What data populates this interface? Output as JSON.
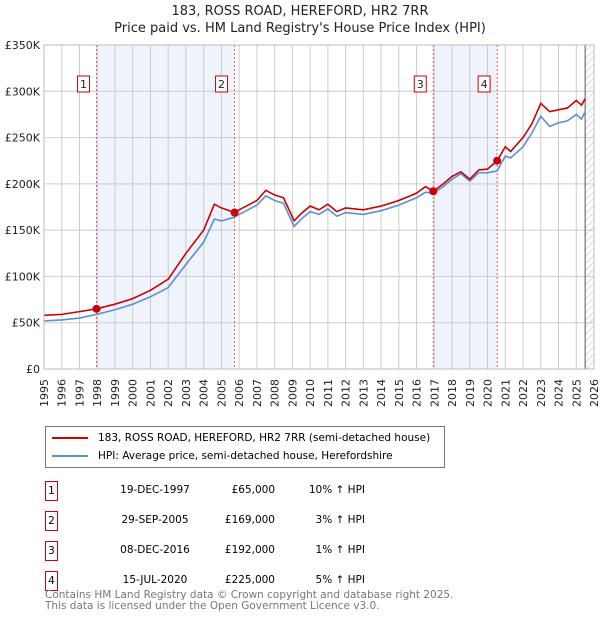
{
  "chart_data": {
    "type": "line",
    "title": "183, ROSS ROAD, HEREFORD, HR2 7RR",
    "subtitle": "Price paid vs. HM Land Registry's House Price Index (HPI)",
    "xlim": [
      1995,
      2026
    ],
    "ylim": [
      0,
      350000
    ],
    "x_ticks": [
      "1995",
      "1996",
      "1997",
      "1998",
      "1999",
      "2000",
      "2001",
      "2002",
      "2003",
      "2004",
      "2005",
      "2006",
      "2007",
      "2008",
      "2009",
      "2010",
      "2011",
      "2012",
      "2013",
      "2014",
      "2015",
      "2016",
      "2017",
      "2018",
      "2019",
      "2020",
      "2021",
      "2022",
      "2023",
      "2024",
      "2025",
      "2026"
    ],
    "y_ticks": [
      {
        "v": 0,
        "label": "£0"
      },
      {
        "v": 50000,
        "label": "£50K"
      },
      {
        "v": 100000,
        "label": "£100K"
      },
      {
        "v": 150000,
        "label": "£150K"
      },
      {
        "v": 200000,
        "label": "£200K"
      },
      {
        "v": 250000,
        "label": "£250K"
      },
      {
        "v": 300000,
        "label": "£300K"
      },
      {
        "v": 350000,
        "label": "£350K"
      }
    ],
    "grid": true,
    "shaded_periods": [
      [
        1997.96,
        2005.74
      ],
      [
        2016.94,
        2020.54
      ]
    ],
    "forecast_hatch_from": 2025.5,
    "series": [
      {
        "name": "183, ROSS ROAD, HEREFORD, HR2 7RR (semi-detached house)",
        "color": "#cc0000",
        "x": [
          1995,
          1996,
          1997,
          1997.96,
          1999,
          2000,
          2001,
          2002,
          2003,
          2004,
          2004.6,
          2005,
          2005.74,
          2006,
          2007,
          2007.5,
          2008,
          2008.5,
          2009.1,
          2009.5,
          2010,
          2010.5,
          2011,
          2011.5,
          2012,
          2013,
          2014,
          2015,
          2016,
          2016.5,
          2016.94,
          2017.5,
          2018,
          2018.5,
          2019,
          2019.5,
          2020,
          2020.54,
          2021,
          2021.3,
          2022,
          2022.5,
          2023,
          2023.5,
          2024,
          2024.5,
          2025,
          2025.3,
          2025.5
        ],
        "y": [
          58000,
          59000,
          62000,
          65000,
          70000,
          76000,
          85000,
          97000,
          125000,
          150000,
          178000,
          174000,
          169000,
          172000,
          182000,
          193000,
          188000,
          185000,
          160000,
          168000,
          176000,
          172000,
          178000,
          170000,
          174000,
          172000,
          176000,
          182000,
          190000,
          197000,
          192000,
          200000,
          208000,
          213000,
          205000,
          215000,
          216000,
          225000,
          240000,
          235000,
          250000,
          265000,
          287000,
          278000,
          280000,
          282000,
          290000,
          285000,
          292000
        ]
      },
      {
        "name": "HPI: Average price, semi-detached house, Herefordshire",
        "color": "#5b8fd4",
        "x": [
          1995,
          1996,
          1997,
          1997.96,
          1999,
          2000,
          2001,
          2002,
          2003,
          2004,
          2004.6,
          2005,
          2005.74,
          2006,
          2007,
          2007.5,
          2008,
          2008.5,
          2009.1,
          2009.5,
          2010,
          2010.5,
          2011,
          2011.5,
          2012,
          2013,
          2014,
          2015,
          2016,
          2016.5,
          2016.94,
          2017.5,
          2018,
          2018.5,
          2019,
          2019.5,
          2020,
          2020.54,
          2021,
          2021.3,
          2022,
          2022.5,
          2023,
          2023.5,
          2024,
          2024.5,
          2025,
          2025.3,
          2025.5
        ],
        "y": [
          52000,
          53000,
          55000,
          59000,
          64000,
          70000,
          78000,
          88000,
          113000,
          137000,
          162000,
          160000,
          164000,
          167000,
          177000,
          187000,
          182000,
          179000,
          154000,
          162000,
          170000,
          167000,
          173000,
          165000,
          169000,
          167000,
          171000,
          177000,
          185000,
          191000,
          190000,
          197000,
          205000,
          211000,
          203000,
          212000,
          212000,
          214000,
          230000,
          228000,
          240000,
          255000,
          273000,
          262000,
          266000,
          268000,
          275000,
          270000,
          278000
        ]
      }
    ],
    "sales": [
      {
        "label": "1",
        "x": 1997.96,
        "y": 65000
      },
      {
        "label": "2",
        "x": 2005.74,
        "y": 169000
      },
      {
        "label": "3",
        "x": 2016.94,
        "y": 192000
      },
      {
        "label": "4",
        "x": 2020.54,
        "y": 225000
      }
    ]
  },
  "legend": [
    "183, ROSS ROAD, HEREFORD, HR2 7RR (semi-detached house)",
    "HPI: Average price, semi-detached house, Herefordshire"
  ],
  "table": [
    {
      "num": "1",
      "date": "19-DEC-1997",
      "price": "£65,000",
      "hpi": "10% ↑ HPI"
    },
    {
      "num": "2",
      "date": "29-SEP-2005",
      "price": "£169,000",
      "hpi": "3% ↑ HPI"
    },
    {
      "num": "3",
      "date": "08-DEC-2016",
      "price": "£192,000",
      "hpi": "1% ↑ HPI"
    },
    {
      "num": "4",
      "date": "15-JUL-2020",
      "price": "£225,000",
      "hpi": "5% ↑ HPI"
    }
  ],
  "footer": [
    "Contains HM Land Registry data © Crown copyright and database right 2025.",
    "This data is licensed under the Open Government Licence v3.0."
  ]
}
